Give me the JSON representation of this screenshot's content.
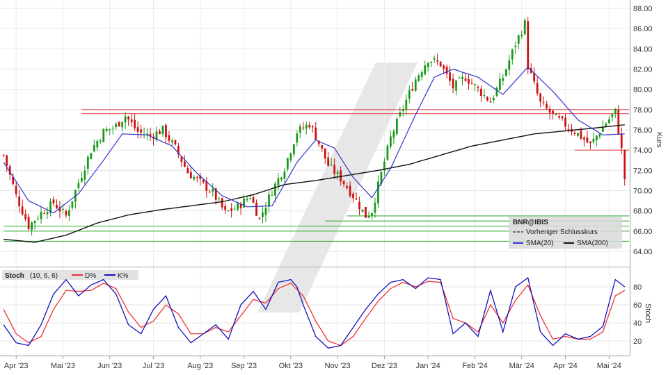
{
  "chart_data": [
    {
      "type": "candlestick",
      "ylabel": "Kurs",
      "ylim": [
        62.5,
        88.6
      ],
      "yticks": [
        "88.00",
        "86.00",
        "84.00",
        "82.00",
        "80.00",
        "78.00",
        "76.00",
        "74.00",
        "72.00",
        "70.00",
        "68.00",
        "66.00",
        "64.00"
      ],
      "xticks": [
        "Apr '23",
        "Mai '23",
        "Jun '23",
        "Jul '23",
        "Aug '23",
        "Sep '23",
        "Okt '23",
        "Nov '23",
        "Dez '23",
        "Jan '24",
        "Feb '24",
        "Mär '24",
        "Apr '24",
        "Mai '24"
      ],
      "legend": {
        "symbol": "BNR@IBIS",
        "items": [
          "Vorheriger Schlusskurs",
          "SMA(20)",
          "SMA(200)"
        ]
      },
      "colors": {
        "up": "#1a9a1a",
        "down": "#cc1111",
        "sma20": "#3333cc",
        "sma200": "#111111",
        "support": "#3cb03c",
        "resistance": "#e05050"
      },
      "close_path": [
        [
          0,
          73.5
        ],
        [
          4,
          69.5
        ],
        [
          8,
          66.5
        ],
        [
          12,
          67.8
        ],
        [
          16,
          68.8
        ],
        [
          20,
          67.5
        ],
        [
          24,
          70.8
        ],
        [
          28,
          74.0
        ],
        [
          32,
          75.8
        ],
        [
          36,
          76.4
        ],
        [
          39,
          77.4
        ],
        [
          43,
          75.8
        ],
        [
          47,
          75.4
        ],
        [
          51,
          76.0
        ],
        [
          55,
          74.2
        ],
        [
          59,
          71.8
        ],
        [
          63,
          70.8
        ],
        [
          67,
          69.8
        ],
        [
          71,
          67.8
        ],
        [
          75,
          68.4
        ],
        [
          79,
          69.5
        ],
        [
          82,
          67.2
        ],
        [
          86,
          70.0
        ],
        [
          90,
          72.3
        ],
        [
          94,
          75.8
        ],
        [
          98,
          76.6
        ],
        [
          100,
          75.4
        ],
        [
          104,
          72.5
        ],
        [
          108,
          71.2
        ],
        [
          112,
          69.5
        ],
        [
          116,
          67.5
        ],
        [
          118,
          68.0
        ],
        [
          120,
          70.5
        ],
        [
          124,
          75.2
        ],
        [
          128,
          78.2
        ],
        [
          132,
          81.0
        ],
        [
          136,
          83.0
        ],
        [
          140,
          82.5
        ],
        [
          144,
          80.2
        ],
        [
          148,
          81.2
        ],
        [
          152,
          80.0
        ],
        [
          156,
          78.8
        ],
        [
          160,
          81.2
        ],
        [
          164,
          84.5
        ],
        [
          167,
          86.5
        ],
        [
          168,
          82.3
        ],
        [
          172,
          78.6
        ],
        [
          176,
          77.4
        ],
        [
          180,
          76.5
        ],
        [
          184,
          75.6
        ],
        [
          188,
          74.5
        ],
        [
          192,
          76.3
        ],
        [
          196,
          77.8
        ],
        [
          198,
          74.0
        ],
        [
          199,
          71.2
        ]
      ],
      "sma20_path": [
        [
          0,
          72.8
        ],
        [
          8,
          69.0
        ],
        [
          16,
          67.8
        ],
        [
          24,
          69.7
        ],
        [
          32,
          73.0
        ],
        [
          38,
          75.6
        ],
        [
          46,
          75.5
        ],
        [
          54,
          74.4
        ],
        [
          62,
          71.7
        ],
        [
          70,
          69.5
        ],
        [
          78,
          68.4
        ],
        [
          86,
          68.5
        ],
        [
          94,
          72.8
        ],
        [
          100,
          75.0
        ],
        [
          106,
          74.2
        ],
        [
          112,
          71.3
        ],
        [
          118,
          69.3
        ],
        [
          124,
          72.2
        ],
        [
          132,
          77.5
        ],
        [
          138,
          81.2
        ],
        [
          144,
          82.0
        ],
        [
          152,
          81.2
        ],
        [
          160,
          79.5
        ],
        [
          168,
          82.2
        ],
        [
          176,
          79.8
        ],
        [
          184,
          77.0
        ],
        [
          192,
          75.5
        ],
        [
          199,
          75.6
        ]
      ],
      "sma200_path": [
        [
          0,
          65.2
        ],
        [
          10,
          64.9
        ],
        [
          20,
          65.6
        ],
        [
          30,
          66.8
        ],
        [
          40,
          67.6
        ],
        [
          50,
          68.1
        ],
        [
          60,
          68.5
        ],
        [
          70,
          68.9
        ],
        [
          80,
          69.6
        ],
        [
          90,
          70.6
        ],
        [
          100,
          71.0
        ],
        [
          110,
          71.5
        ],
        [
          120,
          72.0
        ],
        [
          130,
          72.6
        ],
        [
          140,
          73.5
        ],
        [
          150,
          74.4
        ],
        [
          160,
          75.0
        ],
        [
          170,
          75.6
        ],
        [
          180,
          75.9
        ],
        [
          190,
          76.2
        ],
        [
          199,
          76.5
        ]
      ],
      "resistance_lines": [
        [
          78.0,
          25,
          201
        ],
        [
          77.6,
          25,
          201
        ],
        [
          74.0,
          183,
          201
        ]
      ],
      "support_lines": [
        [
          67.5,
          110,
          201
        ],
        [
          67.0,
          103,
          201
        ],
        [
          66.5,
          0,
          201
        ],
        [
          66.0,
          0,
          201
        ],
        [
          65.0,
          0,
          201
        ]
      ]
    },
    {
      "type": "line",
      "label": "Stoch",
      "ylabel": "Stoch",
      "ylim": [
        5,
        95
      ],
      "yticks": [
        "80",
        "60",
        "40",
        "20"
      ],
      "legend": {
        "name": "Stoch",
        "params": "(10, 6, 6)",
        "items": [
          "D%",
          "K%"
        ]
      },
      "colors": {
        "d": "#ee3333",
        "k": "#1111bb"
      },
      "k_path": [
        [
          0,
          38
        ],
        [
          4,
          18
        ],
        [
          8,
          15
        ],
        [
          12,
          38
        ],
        [
          16,
          72
        ],
        [
          20,
          88
        ],
        [
          24,
          70
        ],
        [
          28,
          82
        ],
        [
          32,
          88
        ],
        [
          36,
          72
        ],
        [
          40,
          38
        ],
        [
          44,
          28
        ],
        [
          48,
          55
        ],
        [
          52,
          70
        ],
        [
          56,
          35
        ],
        [
          60,
          18
        ],
        [
          64,
          28
        ],
        [
          68,
          38
        ],
        [
          72,
          22
        ],
        [
          76,
          60
        ],
        [
          80,
          75
        ],
        [
          84,
          55
        ],
        [
          88,
          85
        ],
        [
          92,
          88
        ],
        [
          94,
          80
        ],
        [
          96,
          60
        ],
        [
          100,
          25
        ],
        [
          104,
          12
        ],
        [
          108,
          15
        ],
        [
          112,
          35
        ],
        [
          116,
          55
        ],
        [
          120,
          72
        ],
        [
          124,
          85
        ],
        [
          128,
          88
        ],
        [
          132,
          78
        ],
        [
          136,
          90
        ],
        [
          140,
          88
        ],
        [
          144,
          28
        ],
        [
          148,
          40
        ],
        [
          152,
          25
        ],
        [
          156,
          76
        ],
        [
          160,
          30
        ],
        [
          164,
          80
        ],
        [
          168,
          90
        ],
        [
          172,
          30
        ],
        [
          176,
          15
        ],
        [
          180,
          28
        ],
        [
          184,
          22
        ],
        [
          188,
          25
        ],
        [
          192,
          36
        ],
        [
          196,
          88
        ],
        [
          199,
          80
        ]
      ],
      "d_path": [
        [
          0,
          55
        ],
        [
          4,
          28
        ],
        [
          8,
          18
        ],
        [
          12,
          25
        ],
        [
          16,
          55
        ],
        [
          20,
          76
        ],
        [
          24,
          75
        ],
        [
          28,
          76
        ],
        [
          32,
          84
        ],
        [
          36,
          78
        ],
        [
          40,
          52
        ],
        [
          44,
          35
        ],
        [
          48,
          42
        ],
        [
          52,
          60
        ],
        [
          56,
          50
        ],
        [
          60,
          28
        ],
        [
          64,
          28
        ],
        [
          68,
          35
        ],
        [
          72,
          30
        ],
        [
          76,
          48
        ],
        [
          80,
          66
        ],
        [
          84,
          62
        ],
        [
          88,
          78
        ],
        [
          92,
          84
        ],
        [
          96,
          70
        ],
        [
          100,
          42
        ],
        [
          104,
          20
        ],
        [
          108,
          15
        ],
        [
          112,
          25
        ],
        [
          116,
          45
        ],
        [
          120,
          64
        ],
        [
          124,
          78
        ],
        [
          128,
          85
        ],
        [
          132,
          80
        ],
        [
          136,
          86
        ],
        [
          140,
          85
        ],
        [
          144,
          45
        ],
        [
          148,
          40
        ],
        [
          152,
          30
        ],
        [
          156,
          60
        ],
        [
          160,
          40
        ],
        [
          164,
          65
        ],
        [
          168,
          82
        ],
        [
          172,
          48
        ],
        [
          176,
          22
        ],
        [
          180,
          25
        ],
        [
          184,
          22
        ],
        [
          188,
          22
        ],
        [
          192,
          30
        ],
        [
          196,
          70
        ],
        [
          199,
          76
        ]
      ]
    }
  ]
}
